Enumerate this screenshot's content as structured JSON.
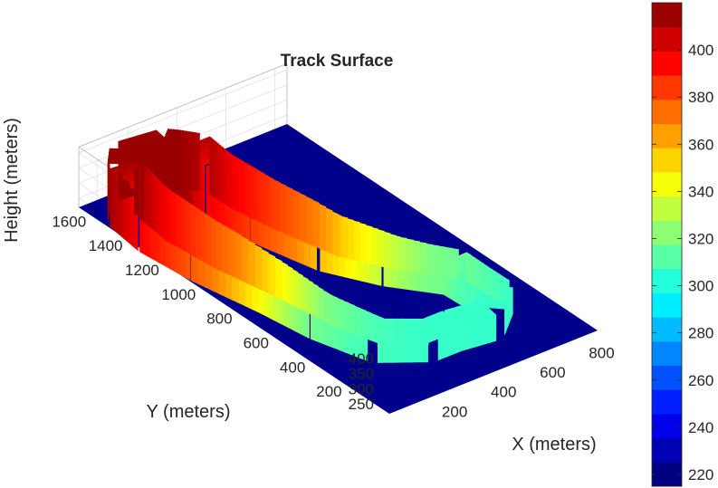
{
  "chart_data": {
    "type": "surface",
    "title": "Track Surface",
    "xlabel": "X (meters)",
    "ylabel": "Y (meters)",
    "zlabel": "Height (meters)",
    "x_ticks": [
      200,
      400,
      600,
      800
    ],
    "y_ticks": [
      200,
      400,
      600,
      800,
      1000,
      1200,
      1400,
      1600
    ],
    "z_ticks": [
      250,
      300,
      350,
      400
    ],
    "xlim": [
      0,
      850
    ],
    "ylim": [
      0,
      1700
    ],
    "zlim": [
      220,
      420
    ],
    "grid": true,
    "colormap": "jet",
    "colorbar": {
      "ticks": [
        220,
        240,
        260,
        280,
        300,
        320,
        340,
        360,
        380,
        400
      ],
      "range": [
        215,
        420
      ],
      "placement": "right"
    },
    "ground_height": 220,
    "track_heights_by_y": [
      {
        "y": 1550,
        "height": 415
      },
      {
        "y": 1400,
        "height": 400
      },
      {
        "y": 1200,
        "height": 385
      },
      {
        "y": 1000,
        "height": 370
      },
      {
        "y": 800,
        "height": 345
      },
      {
        "y": 600,
        "height": 320
      },
      {
        "y": 400,
        "height": 310
      },
      {
        "y": 200,
        "height": 305
      }
    ]
  }
}
